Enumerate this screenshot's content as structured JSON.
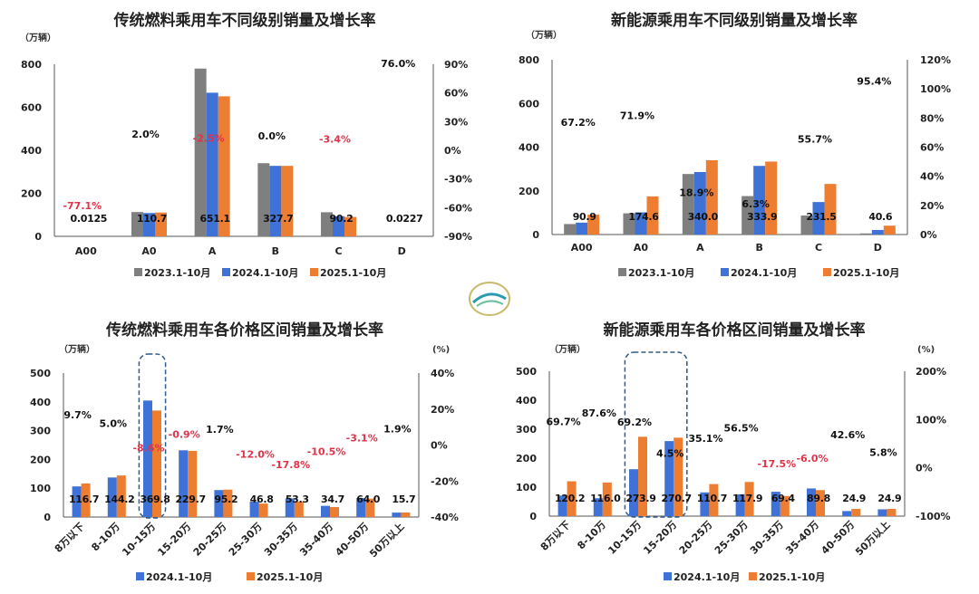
{
  "colors": {
    "2023": "#7f7f7f",
    "2024": "#3f72d6",
    "2025": "#ed7d31",
    "negative_growth": "#e0334a",
    "positive_growth": "#111111"
  },
  "chart_data": [
    {
      "type": "bar",
      "title": "传统燃料乘用车不同级别销量及增长率",
      "ylabel": "（万辆）",
      "ylim": [
        0,
        800
      ],
      "yticks": [
        "0",
        "200",
        "400",
        "600",
        "800"
      ],
      "y2lim": [
        -90,
        90
      ],
      "y2ticks": [
        "-90%",
        "-60%",
        "-30%",
        "0%",
        "30%",
        "60%",
        "90%"
      ],
      "categories": [
        "A00",
        "A0",
        "A",
        "B",
        "C",
        "D"
      ],
      "series": [
        {
          "name": "2023.1-10月",
          "values": [
            0.05,
            113,
            780,
            340,
            112,
            0.01
          ]
        },
        {
          "name": "2024.1-10月",
          "values": [
            0.05,
            108.5,
            667.8,
            327.7,
            93.4,
            0.013
          ]
        },
        {
          "name": "2025.1-10月",
          "values": [
            0.0125,
            110.7,
            651.1,
            327.7,
            90.2,
            0.0227
          ]
        }
      ],
      "value_labels": [
        "0.0125",
        "110.7",
        "651.1",
        "327.7",
        "90.2",
        "0.0227"
      ],
      "growth": [
        -77.1,
        2.0,
        -2.5,
        0.0,
        -3.4,
        76.0
      ],
      "growth_labels": [
        "-77.1%",
        "2.0%",
        "-2.5%",
        "0.0%",
        "-3.4%",
        "76.0%"
      ],
      "legend": "bottom"
    },
    {
      "type": "bar",
      "title": "新能源乘用车不同级别销量及增长率",
      "ylabel": "（万辆）",
      "ylim": [
        0,
        800
      ],
      "yticks": [
        "0",
        "200",
        "400",
        "600",
        "800"
      ],
      "y2lim": [
        0,
        120
      ],
      "y2ticks": [
        "0%",
        "20%",
        "40%",
        "60%",
        "80%",
        "100%",
        "120%"
      ],
      "categories": [
        "A00",
        "A0",
        "A",
        "B",
        "C",
        "D"
      ],
      "series": [
        {
          "name": "2023.1-10月",
          "values": [
            48,
            97,
            277,
            176,
            87,
            5
          ]
        },
        {
          "name": "2024.1-10月",
          "values": [
            54.4,
            101.6,
            286,
            314.1,
            148.7,
            20.8
          ]
        },
        {
          "name": "2025.1-10月",
          "values": [
            90.9,
            174.6,
            340.0,
            333.9,
            231.5,
            40.6
          ]
        }
      ],
      "value_labels": [
        "90.9",
        "174.6",
        "340.0",
        "333.9",
        "231.5",
        "40.6"
      ],
      "growth": [
        67.2,
        71.9,
        18.9,
        6.3,
        55.7,
        95.4
      ],
      "growth_labels": [
        "67.2%",
        "71.9%",
        "18.9%",
        "6.3%",
        "55.7%",
        "95.4%"
      ],
      "legend": "bottom"
    },
    {
      "type": "bar",
      "title": "传统燃料乘用车各价格区间销量及增长率",
      "ylabel": "（万辆）",
      "y2label": "(%)",
      "ylim": [
        0,
        500
      ],
      "yticks": [
        "0",
        "100",
        "200",
        "300",
        "400",
        "500"
      ],
      "y2lim": [
        -40,
        40
      ],
      "y2ticks": [
        "-40%",
        "-20%",
        "0%",
        "20%",
        "40%"
      ],
      "categories": [
        "8万以下",
        "8-10万",
        "10-15万",
        "15-20万",
        "20-25万",
        "25-30万",
        "30-35万",
        "35-40万",
        "40-50万",
        "50万以上"
      ],
      "series": [
        {
          "name": "2024.1-10月",
          "values": [
            106.4,
            137.3,
            404.6,
            231.8,
            93.6,
            53.2,
            64.8,
            38.8,
            66.0,
            15.4
          ]
        },
        {
          "name": "2025.1-10月",
          "values": [
            116.7,
            144.2,
            369.8,
            229.7,
            95.2,
            46.8,
            53.3,
            34.7,
            64.0,
            15.7
          ]
        }
      ],
      "value_labels": [
        "116.7",
        "144.2",
        "369.8",
        "229.7",
        "95.2",
        "46.8",
        "53.3",
        "34.7",
        "64.0",
        "15.7"
      ],
      "growth": [
        9.7,
        5.0,
        -8.6,
        -0.9,
        1.7,
        -12.0,
        -17.8,
        -10.5,
        -3.1,
        1.9
      ],
      "growth_labels": [
        "9.7%",
        "5.0%",
        "-8.6%",
        "-0.9%",
        "1.7%",
        "-12.0%",
        "-17.8%",
        "-10.5%",
        "-3.1%",
        "1.9%"
      ],
      "highlight_categories": [
        "10-15万"
      ],
      "legend": "bottom"
    },
    {
      "type": "bar",
      "title": "新能源乘用车各价格区间销量及增长率",
      "ylabel": "（万辆）",
      "y2label": "(%)",
      "ylim": [
        0,
        500
      ],
      "yticks": [
        "0",
        "100",
        "200",
        "300",
        "400",
        "500"
      ],
      "y2lim": [
        -100,
        200
      ],
      "y2ticks": [
        "-100%",
        "0%",
        "100%",
        "200%"
      ],
      "categories": [
        "8万以下",
        "8-10万",
        "10-15万",
        "15-20万",
        "20-25万",
        "25-30万",
        "30-35万",
        "35-40万",
        "40-50万",
        "50万以上"
      ],
      "series": [
        {
          "name": "2024.1-10月",
          "values": [
            70.8,
            61.8,
            161.9,
            259.0,
            81.9,
            75.3,
            84.1,
            95.5,
            17.5,
            23.5
          ]
        },
        {
          "name": "2025.1-10月",
          "values": [
            120.2,
            116.0,
            273.9,
            270.7,
            110.7,
            117.9,
            69.4,
            89.8,
            24.9,
            24.9
          ]
        }
      ],
      "value_labels": [
        "120.2",
        "116.0",
        "273.9",
        "270.7",
        "110.7",
        "117.9",
        "69.4",
        "89.8",
        "24.9",
        "24.9"
      ],
      "growth": [
        69.7,
        87.6,
        69.2,
        4.5,
        35.1,
        56.5,
        -17.5,
        -6.0,
        42.6,
        5.8
      ],
      "growth_labels": [
        "69.7%",
        "87.6%",
        "69.2%",
        "4.5%",
        "35.1%",
        "56.5%",
        "-17.5%",
        "-6.0%",
        "42.6%",
        "5.8%"
      ],
      "highlight_categories": [
        "10-15万",
        "15-20万"
      ],
      "legend": "bottom"
    }
  ]
}
